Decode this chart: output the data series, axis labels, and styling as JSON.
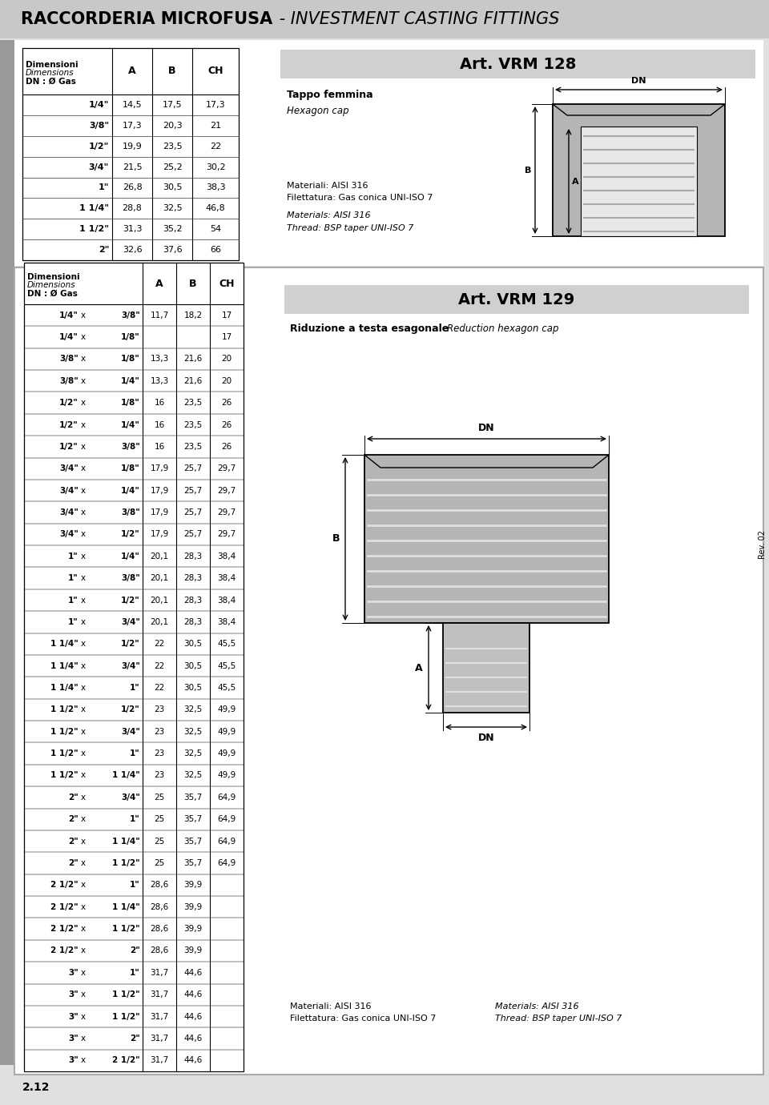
{
  "bg_color": "#e0e0e0",
  "white": "#ffffff",
  "light_gray": "#d0d0d0",
  "mid_gray": "#b8b8b8",
  "dark_gray": "#888888",
  "title_bold": "RACCORDERIA MICROFUSA",
  "title_italic": " - INVESTMENT CASTING FITTINGS",
  "art1_title": "Art. VRM 128",
  "art1_it1": "Tappo femmina",
  "art1_it2": "Hexagon cap",
  "art1_mat_it": "Materiali: AISI 316",
  "art1_fil_it": "Filettatura: Gas conica UNI-ISO 7",
  "art1_mat_en": "Materials: AISI 316",
  "art1_fil_en": "Thread: BSP taper UNI-ISO 7",
  "art2_title": "Art. VRM 129",
  "art2_it1": "Riduzione a testa esagonale",
  "art2_it2": "Reduction hexagon cap",
  "art2_mat_it": "Materiali: AISI 316",
  "art2_fil_it": "Filettatura: Gas conica UNI-ISO 7",
  "art2_mat_en": "Materials: AISI 316",
  "art2_fil_en": "Thread: BSP taper UNI-ISO 7",
  "t1_rows": [
    [
      "1/4\"",
      "14,5",
      "17,5",
      "17,3"
    ],
    [
      "3/8\"",
      "17,3",
      "20,3",
      "21"
    ],
    [
      "1/2\"",
      "19,9",
      "23,5",
      "22"
    ],
    [
      "3/4\"",
      "21,5",
      "25,2",
      "30,2"
    ],
    [
      "1\"",
      "26,8",
      "30,5",
      "38,3"
    ],
    [
      "1 1/4\"",
      "28,8",
      "32,5",
      "46,8"
    ],
    [
      "1 1/2\"",
      "31,3",
      "35,2",
      "54"
    ],
    [
      "2\"",
      "32,6",
      "37,6",
      "66"
    ]
  ],
  "t2_rows": [
    [
      "1/4\"",
      "x",
      "3/8\"",
      "11,7",
      "18,2",
      "17"
    ],
    [
      "1/4\"",
      "x",
      "1/8\"",
      "",
      "",
      "17"
    ],
    [
      "3/8\"",
      "x",
      "1/8\"",
      "13,3",
      "21,6",
      "20"
    ],
    [
      "3/8\"",
      "x",
      "1/4\"",
      "13,3",
      "21,6",
      "20"
    ],
    [
      "1/2\"",
      "x",
      "1/8\"",
      "16",
      "23,5",
      "26"
    ],
    [
      "1/2\"",
      "x",
      "1/4\"",
      "16",
      "23,5",
      "26"
    ],
    [
      "1/2\"",
      "x",
      "3/8\"",
      "16",
      "23,5",
      "26"
    ],
    [
      "3/4\"",
      "x",
      "1/8\"",
      "17,9",
      "25,7",
      "29,7"
    ],
    [
      "3/4\"",
      "x",
      "1/4\"",
      "17,9",
      "25,7",
      "29,7"
    ],
    [
      "3/4\"",
      "x",
      "3/8\"",
      "17,9",
      "25,7",
      "29,7"
    ],
    [
      "3/4\"",
      "x",
      "1/2\"",
      "17,9",
      "25,7",
      "29,7"
    ],
    [
      "1\"",
      "x",
      "1/4\"",
      "20,1",
      "28,3",
      "38,4"
    ],
    [
      "1\"",
      "x",
      "3/8\"",
      "20,1",
      "28,3",
      "38,4"
    ],
    [
      "1\"",
      "x",
      "1/2\"",
      "20,1",
      "28,3",
      "38,4"
    ],
    [
      "1\"",
      "x",
      "3/4\"",
      "20,1",
      "28,3",
      "38,4"
    ],
    [
      "1 1/4\"",
      "x",
      "1/2\"",
      "22",
      "30,5",
      "45,5"
    ],
    [
      "1 1/4\"",
      "x",
      "3/4\"",
      "22",
      "30,5",
      "45,5"
    ],
    [
      "1 1/4\"",
      "x",
      "1\"",
      "22",
      "30,5",
      "45,5"
    ],
    [
      "1 1/2\"",
      "x",
      "1/2\"",
      "23",
      "32,5",
      "49,9"
    ],
    [
      "1 1/2\"",
      "x",
      "3/4\"",
      "23",
      "32,5",
      "49,9"
    ],
    [
      "1 1/2\"",
      "x",
      "1\"",
      "23",
      "32,5",
      "49,9"
    ],
    [
      "1 1/2\"",
      "x",
      "1 1/4\"",
      "23",
      "32,5",
      "49,9"
    ],
    [
      "2\"",
      "x",
      "3/4\"",
      "25",
      "35,7",
      "64,9"
    ],
    [
      "2\"",
      "x",
      "1\"",
      "25",
      "35,7",
      "64,9"
    ],
    [
      "2\"",
      "x",
      "1 1/4\"",
      "25",
      "35,7",
      "64,9"
    ],
    [
      "2\"",
      "x",
      "1 1/2\"",
      "25",
      "35,7",
      "64,9"
    ],
    [
      "2 1/2\"",
      "x",
      "1\"",
      "28,6",
      "39,9",
      ""
    ],
    [
      "2 1/2\"",
      "x",
      "1 1/4\"",
      "28,6",
      "39,9",
      ""
    ],
    [
      "2 1/2\"",
      "x",
      "1 1/2\"",
      "28,6",
      "39,9",
      ""
    ],
    [
      "2 1/2\"",
      "x",
      "2\"",
      "28,6",
      "39,9",
      ""
    ],
    [
      "3\"",
      "x",
      "1\"",
      "31,7",
      "44,6",
      ""
    ],
    [
      "3\"",
      "x",
      "1 1/2\"",
      "31,7",
      "44,6",
      ""
    ],
    [
      "3\"",
      "x",
      "1 1/2\"",
      "31,7",
      "44,6",
      ""
    ],
    [
      "3\"",
      "x",
      "2\"",
      "31,7",
      "44,6",
      ""
    ],
    [
      "3\"",
      "x",
      "2 1/2\"",
      "31,7",
      "44,6",
      ""
    ]
  ],
  "footer_page": "2.12",
  "footer_rev": "Rev. 02"
}
